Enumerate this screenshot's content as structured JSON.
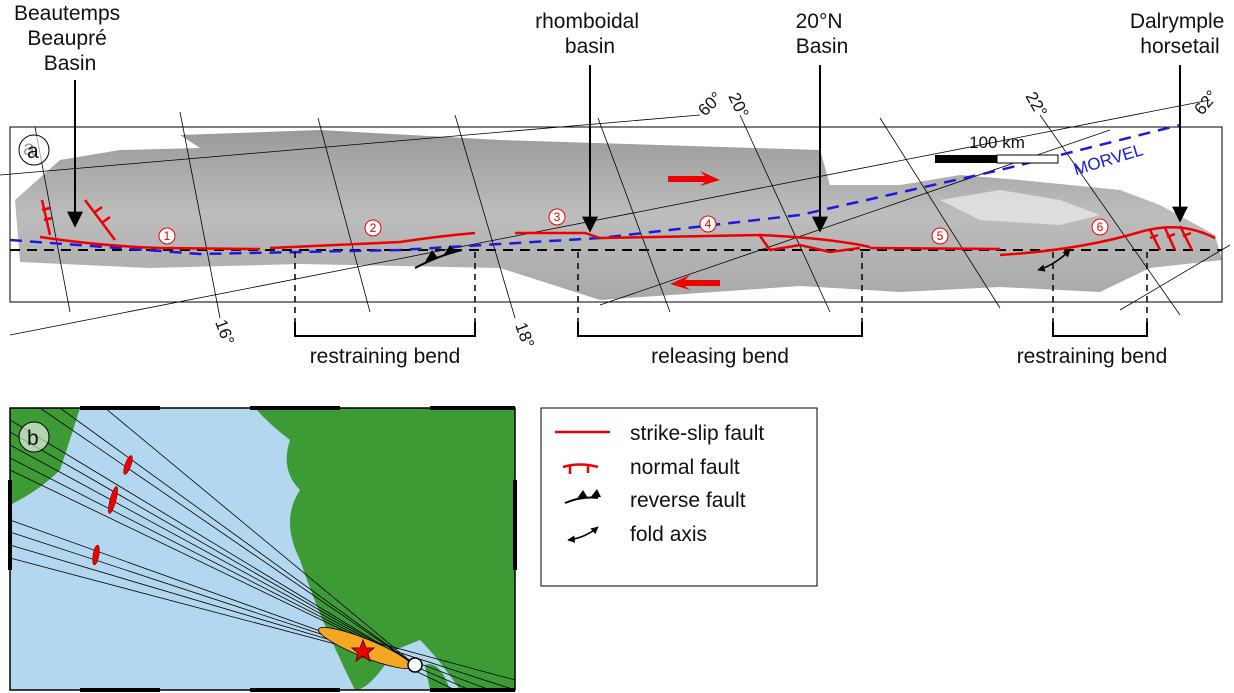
{
  "panel_a": {
    "label": "a",
    "annotations": [
      {
        "lines": [
          "Beautemps",
          "Beaupré",
          "Basin"
        ]
      },
      {
        "lines": [
          "rhomboidal",
          "basin"
        ]
      },
      {
        "lines": [
          "20°N",
          "Basin"
        ]
      },
      {
        "lines": [
          "Dalrymple",
          "horsetail"
        ]
      }
    ],
    "graticule_labels": [
      "60°",
      "20°",
      "22°",
      "62°",
      "16°",
      "18°"
    ],
    "scale_bar": "100 km",
    "plate_model": "MORVEL",
    "segments": [
      "1",
      "2",
      "3",
      "4",
      "5",
      "6"
    ],
    "bends": [
      "restraining bend",
      "releasing bend",
      "restraining bend"
    ]
  },
  "panel_b": {
    "label": "b"
  },
  "legend": [
    "strike-slip fault",
    "normal fault",
    "reverse fault",
    "fold axis"
  ]
}
